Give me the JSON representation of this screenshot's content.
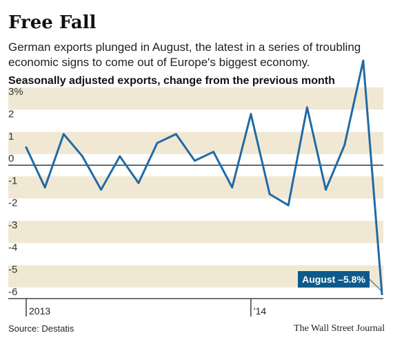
{
  "header": {
    "title": "Free Fall",
    "subtitle": "German exports plunged in August, the latest in a series of troubling economic signs to come out of Europe's biggest economy.",
    "chart_label": "Seasonally adjusted exports, change from the previous month"
  },
  "footer": {
    "source": "Source: Destatis",
    "credit": "The Wall Street Journal"
  },
  "colors": {
    "line": "#1f6aa5",
    "band": "#f1e8d4",
    "callout_bg": "#0d5a8c",
    "callout_text": "#ffffff"
  },
  "chart_data": {
    "type": "line",
    "title": "Seasonally adjusted exports, change from the previous month",
    "y_unit": "%",
    "ylim": [
      -6,
      3
    ],
    "y_ticks": [
      {
        "value": 3,
        "label": "3%"
      },
      {
        "value": 2,
        "label": "2"
      },
      {
        "value": 1,
        "label": "1"
      },
      {
        "value": 0,
        "label": "0"
      },
      {
        "value": -1,
        "label": "-1"
      },
      {
        "value": -2,
        "label": "-2"
      },
      {
        "value": -3,
        "label": "-3"
      },
      {
        "value": -4,
        "label": "-4"
      },
      {
        "value": -5,
        "label": "-5"
      },
      {
        "value": -6,
        "label": "-6"
      }
    ],
    "x_ticks": [
      {
        "index": 0,
        "label": "2013"
      },
      {
        "index": 12,
        "label": "'14"
      }
    ],
    "grid": "alternating horizontal bands",
    "series": [
      {
        "values": [
          0.8,
          -1.0,
          1.4,
          0.4,
          -1.1,
          0.4,
          -0.8,
          1.0,
          1.4,
          0.2,
          0.6,
          -1.0,
          2.3,
          -1.3,
          -1.8,
          2.6,
          -1.1,
          0.9,
          4.7,
          -5.8
        ]
      }
    ],
    "annotation": {
      "label": "August –5.8%",
      "point_index": 19
    }
  }
}
